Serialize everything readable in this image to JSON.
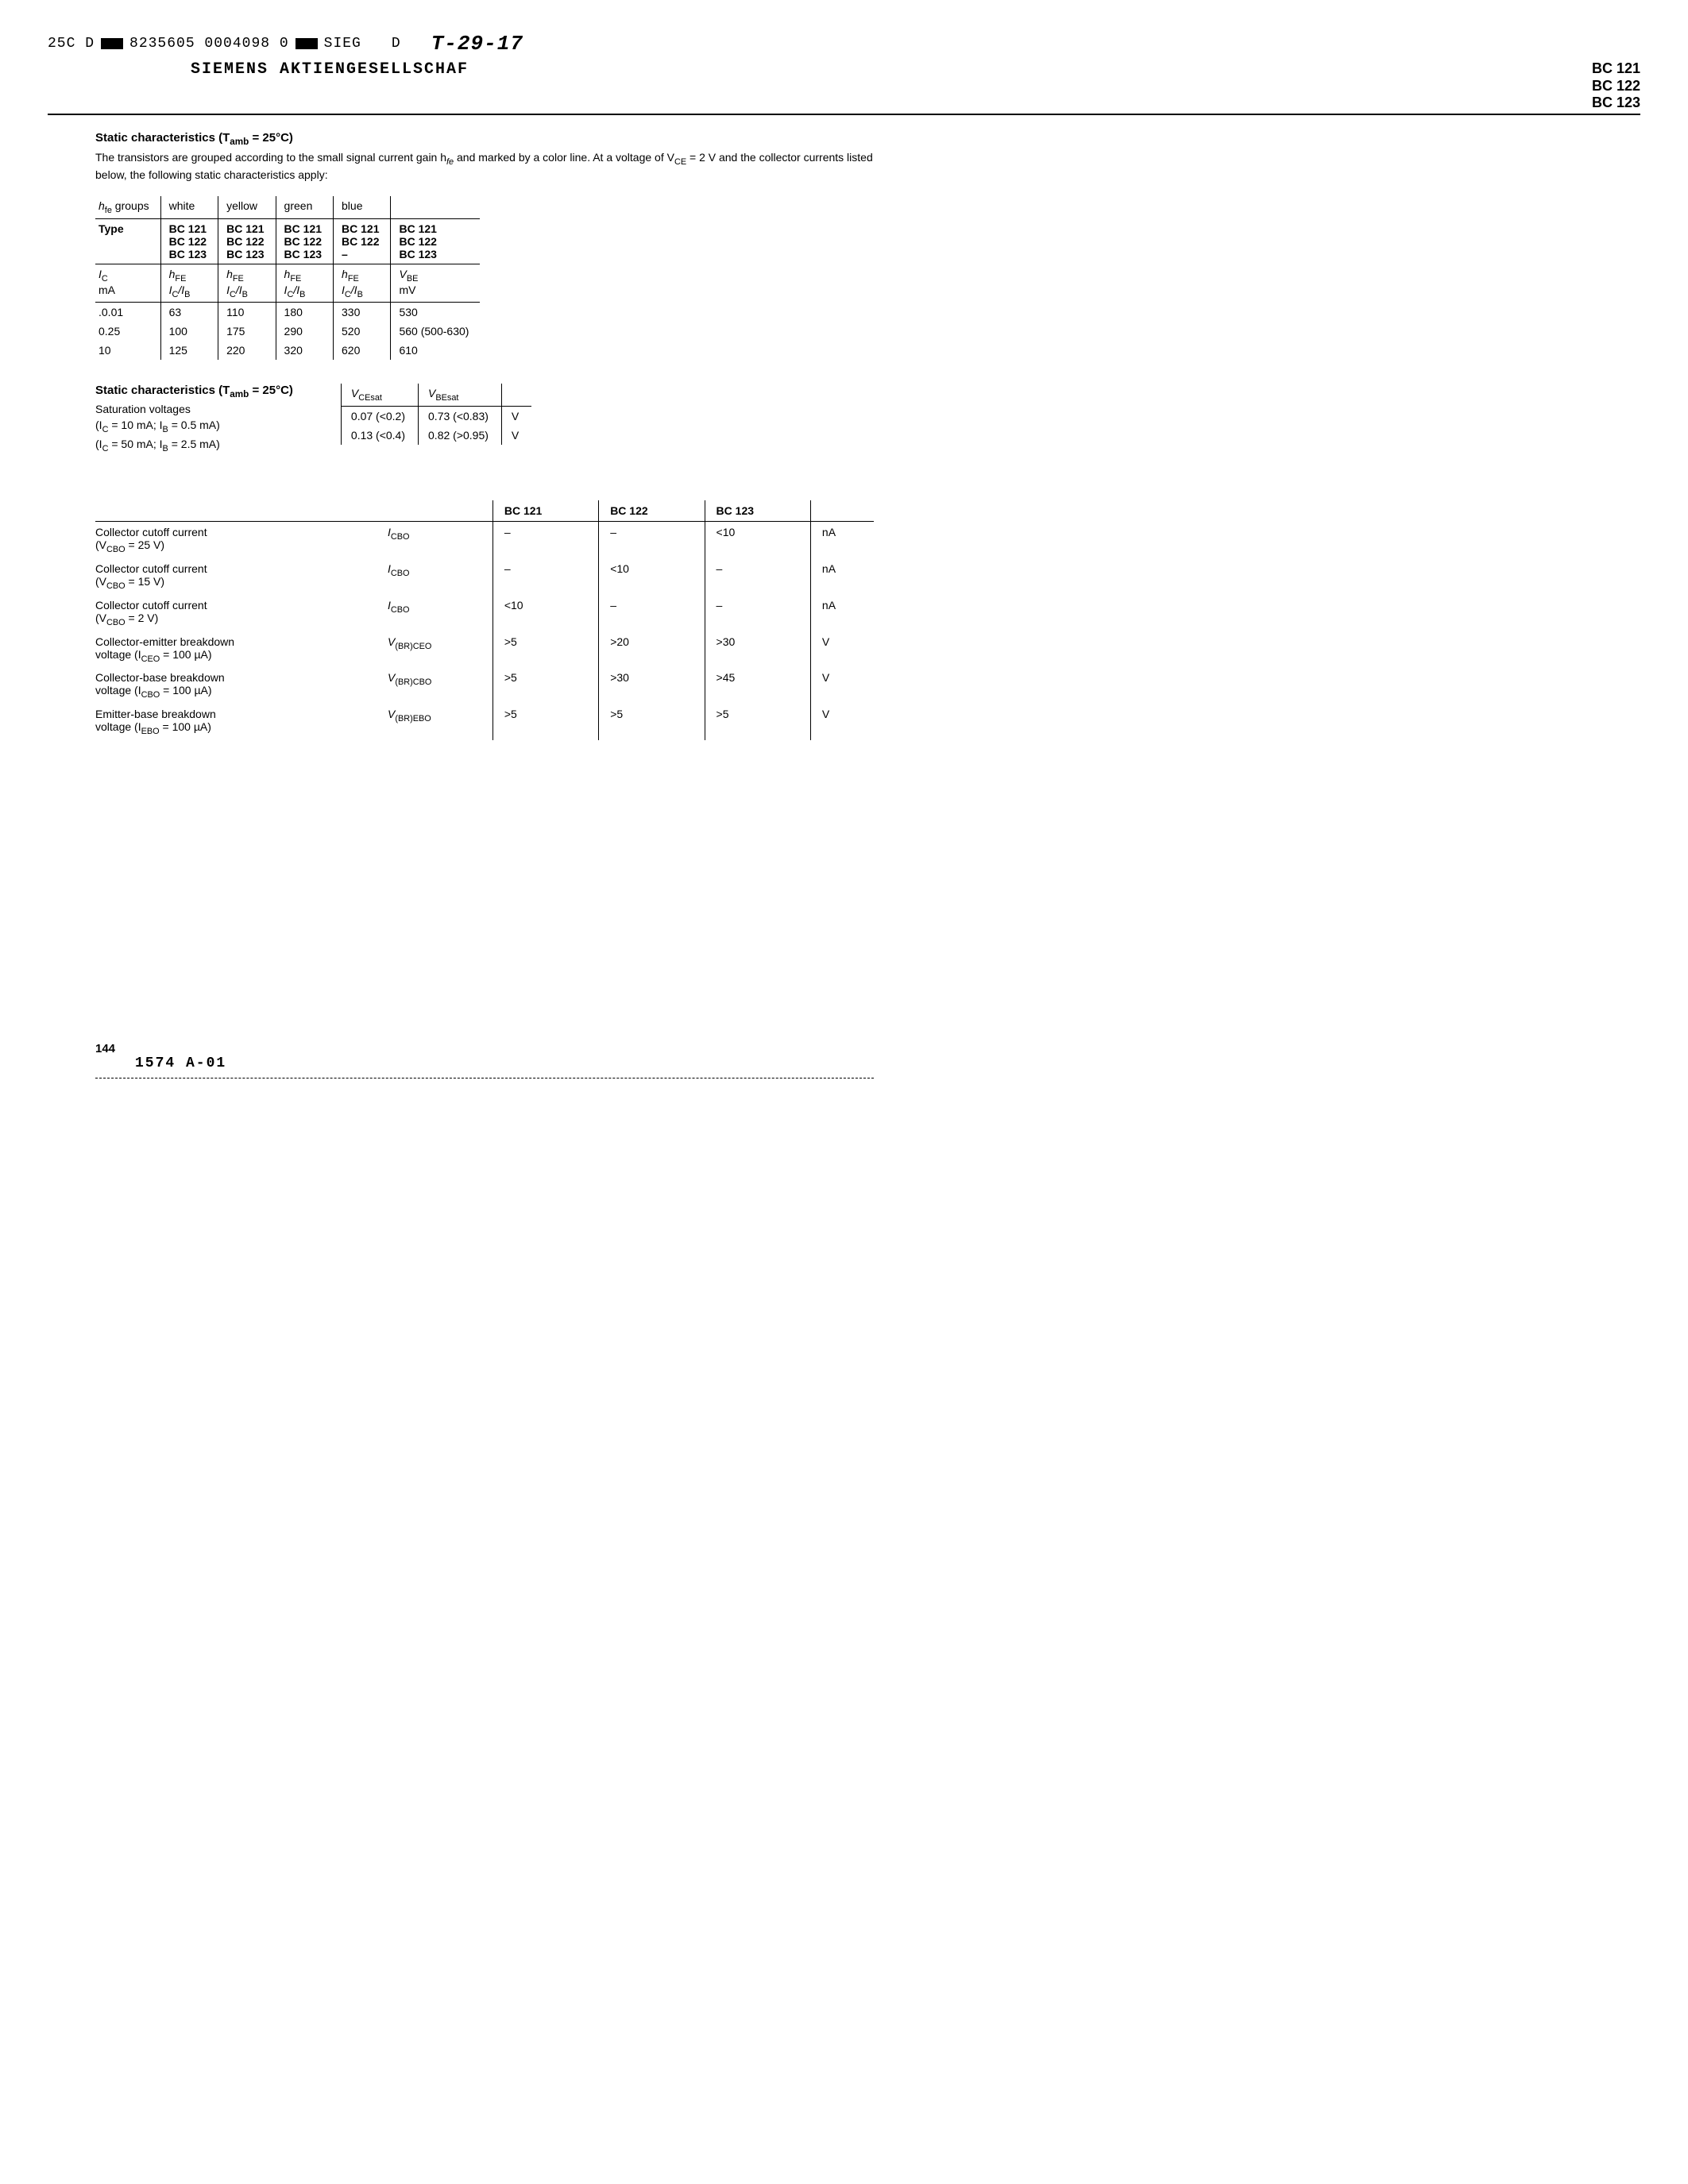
{
  "header": {
    "top_code_left": "25C D",
    "top_code_num": "8235605 0004098 0",
    "top_code_right": "SIEG",
    "d_letter": "D",
    "handwritten": "T-29-17",
    "company": "SIEMENS AKTIENGESELLSCHAF",
    "parts": [
      "BC 121",
      "BC 122",
      "BC 123"
    ]
  },
  "static1": {
    "title": "Static characteristics (T",
    "title_sub": "amb",
    "title_after": " = 25°C)",
    "intro": "The transistors are grouped according to the small signal current gain h",
    "intro_sub": "fe",
    "intro_after": " and marked by a color line. At a voltage of V",
    "intro_sub2": "CE",
    "intro_after2": " = 2 V and the collector currents listed below, the following static characteristics apply:"
  },
  "table1": {
    "row1": [
      "h",
      "fe",
      " groups",
      "white",
      "yellow",
      "green",
      "blue",
      ""
    ],
    "row2_label": "Type",
    "types": {
      "c1": [
        "BC 121",
        "BC 122",
        "BC 123"
      ],
      "c2": [
        "BC 121",
        "BC 122",
        "BC 123"
      ],
      "c3": [
        "BC 121",
        "BC 122",
        "BC 123"
      ],
      "c4": [
        "BC 121",
        "BC 122",
        "–"
      ],
      "c5": [
        "BC 121",
        "BC 122",
        "BC 123"
      ]
    },
    "row3": {
      "c0a": "I",
      "c0a_sub": "C",
      "c0b": "mA",
      "lbl_a": "h",
      "lbl_a_sub": "FE",
      "lbl_b": "I",
      "lbl_b_sub1": "C",
      "lbl_b_mid": "/I",
      "lbl_b_sub2": "B",
      "c5a": "V",
      "c5a_sub": "BE",
      "c5b": "mV"
    },
    "data": [
      {
        "ic": ".0.01",
        "v": [
          "63",
          "110",
          "180",
          "330",
          "530"
        ]
      },
      {
        "ic": "0.25",
        "v": [
          "100",
          "175",
          "290",
          "520",
          "560 (500-630)"
        ]
      },
      {
        "ic": "10",
        "v": [
          "125",
          "220",
          "320",
          "620",
          "610"
        ]
      }
    ]
  },
  "static2": {
    "title": "Static characteristics (T",
    "title_sub": "amb",
    "title_after": " = 25°C)",
    "subtitle": "Saturation voltages",
    "cond1": "(I",
    "cond1_sub1": "C",
    "cond1_mid": " = 10 mA; I",
    "cond1_sub2": "B",
    "cond1_end": " = 0.5 mA)",
    "cond2": "(I",
    "cond2_sub1": "C",
    "cond2_mid": " = 50 mA; I",
    "cond2_sub2": "B",
    "cond2_end": " = 2.5 mA)"
  },
  "table2": {
    "h1": "V",
    "h1_sub": "CEsat",
    "h2": "V",
    "h2_sub": "BEsat",
    "rows": [
      {
        "a": "0.07 (<0.2)",
        "b": "0.73 (<0.83)",
        "u": "V"
      },
      {
        "a": "0.13 (<0.4)",
        "b": "0.82 (>0.95)",
        "u": "V"
      }
    ]
  },
  "table3": {
    "headers": [
      "",
      "BC 121",
      "BC 122",
      "BC 123",
      ""
    ],
    "rows": [
      {
        "desc": "Collector cutoff current",
        "cond": "(V",
        "cond_sub": "CBO",
        "cond_end": " = 25 V)",
        "sym": "I",
        "sym_sub": "CBO",
        "v": [
          "–",
          "–",
          "<10"
        ],
        "u": "nA"
      },
      {
        "desc": "Collector cutoff current",
        "cond": "(V",
        "cond_sub": "CBO",
        "cond_end": " = 15 V)",
        "sym": "I",
        "sym_sub": "CBO",
        "v": [
          "–",
          "<10",
          "–"
        ],
        "u": "nA"
      },
      {
        "desc": "Collector cutoff current",
        "cond": "(V",
        "cond_sub": "CBO",
        "cond_end": " = 2 V)",
        "sym": "I",
        "sym_sub": "CBO",
        "v": [
          "<10",
          "–",
          "–"
        ],
        "u": "nA"
      },
      {
        "desc": "Collector-emitter breakdown",
        "cond": "voltage (I",
        "cond_sub": "CEO",
        "cond_end": " = 100 µA)",
        "sym": "V",
        "sym_sub": "(BR)CEO",
        "v": [
          ">5",
          ">20",
          ">30"
        ],
        "u": "V"
      },
      {
        "desc": "Collector-base breakdown",
        "cond": "voltage (I",
        "cond_sub": "CBO",
        "cond_end": " = 100 µA)",
        "sym": "V",
        "sym_sub": "(BR)CBO",
        "v": [
          ">5",
          ">30",
          ">45"
        ],
        "u": "V"
      },
      {
        "desc": "Emitter-base breakdown",
        "cond": "voltage (I",
        "cond_sub": "EBO",
        "cond_end": " = 100 µA)",
        "sym": "V",
        "sym_sub": "(BR)EBO",
        "v": [
          ">5",
          ">5",
          ">5"
        ],
        "u": "V"
      }
    ]
  },
  "footer": {
    "page_num": "144",
    "code": "1574    A-01"
  }
}
